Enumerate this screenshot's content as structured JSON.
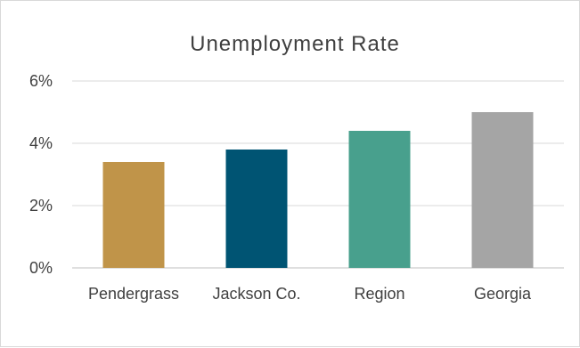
{
  "chart_data": {
    "type": "bar",
    "title": "Unemployment Rate",
    "categories": [
      "Pendergrass",
      "Jackson Co.",
      "Region",
      "Georgia"
    ],
    "values": [
      3.4,
      3.8,
      4.4,
      5.0
    ],
    "colors": [
      "#c09449",
      "#005473",
      "#48a08d",
      "#a5a5a5"
    ],
    "ylim": [
      0,
      6
    ],
    "yticks": [
      0,
      2,
      4,
      6
    ],
    "ytick_labels": [
      "0%",
      "2%",
      "4%",
      "6%"
    ],
    "grid": true,
    "legend": "none"
  }
}
